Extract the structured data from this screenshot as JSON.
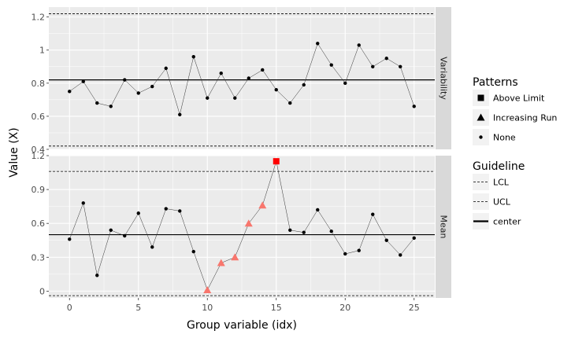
{
  "chart_data": {
    "type": "line",
    "xlabel": "Group variable (idx)",
    "ylabel": "Value (X)",
    "x_ticks": [
      0,
      5,
      10,
      15,
      20,
      25
    ],
    "xlim": [
      -1.5,
      26.5
    ],
    "grid": true,
    "legend_position": "right",
    "facets": [
      {
        "name": "Variability",
        "ylim": [
          0.4,
          1.26
        ],
        "y_ticks": [
          0.4,
          0.6,
          0.8,
          1.0,
          1.2
        ],
        "y_tick_labels": [
          "0.4",
          "0.6",
          "0.8",
          "1",
          "1.2"
        ],
        "center": 0.82,
        "lcl": 0.42,
        "ucl": 1.22,
        "x": [
          0,
          1,
          2,
          3,
          4,
          5,
          6,
          7,
          8,
          9,
          10,
          11,
          12,
          13,
          14,
          15,
          16,
          17,
          18,
          19,
          20,
          21,
          22,
          23,
          24,
          25
        ],
        "values": [
          0.75,
          0.81,
          0.68,
          0.66,
          0.82,
          0.74,
          0.78,
          0.89,
          0.61,
          0.96,
          0.71,
          0.86,
          0.71,
          0.83,
          0.88,
          0.76,
          0.68,
          0.79,
          1.04,
          0.91,
          0.8,
          1.03,
          0.9,
          0.95,
          0.9,
          0.66
        ],
        "patterns": [
          "None",
          "None",
          "None",
          "None",
          "None",
          "None",
          "None",
          "None",
          "None",
          "None",
          "None",
          "None",
          "None",
          "None",
          "None",
          "None",
          "None",
          "None",
          "None",
          "None",
          "None",
          "None",
          "None",
          "None",
          "None",
          "None"
        ]
      },
      {
        "name": "Mean",
        "ylim": [
          -0.06,
          1.2
        ],
        "y_ticks": [
          0,
          0.3,
          0.6,
          0.9,
          1.2
        ],
        "y_tick_labels": [
          "0",
          "0.3",
          "0.6",
          "0.9",
          "1.2"
        ],
        "center": 0.5,
        "lcl": -0.04,
        "ucl": 1.06,
        "x": [
          0,
          1,
          2,
          3,
          4,
          5,
          6,
          7,
          8,
          9,
          10,
          11,
          12,
          13,
          14,
          15,
          16,
          17,
          18,
          19,
          20,
          21,
          22,
          23,
          24,
          25
        ],
        "values": [
          0.46,
          0.78,
          0.14,
          0.54,
          0.49,
          0.69,
          0.39,
          0.73,
          0.71,
          0.35,
          0.01,
          0.25,
          0.3,
          0.6,
          0.76,
          1.15,
          0.54,
          0.52,
          0.72,
          0.53,
          0.33,
          0.36,
          0.68,
          0.45,
          0.32,
          0.47
        ],
        "patterns": [
          "None",
          "None",
          "None",
          "None",
          "None",
          "None",
          "None",
          "None",
          "None",
          "None",
          "Increasing Run",
          "Increasing Run",
          "Increasing Run",
          "Increasing Run",
          "Increasing Run",
          "Above Limit",
          "None",
          "None",
          "None",
          "None",
          "None",
          "None",
          "None",
          "None",
          "None",
          "None"
        ]
      }
    ],
    "legends": {
      "patterns": {
        "title": "Patterns",
        "items": [
          {
            "label": "Above Limit",
            "shape": "square"
          },
          {
            "label": "Increasing Run",
            "shape": "triangle"
          },
          {
            "label": "None",
            "shape": "dot"
          }
        ]
      },
      "guideline": {
        "title": "Guideline",
        "items": [
          {
            "label": "LCL",
            "style": "dashed"
          },
          {
            "label": "UCL",
            "style": "dashed"
          },
          {
            "label": "center",
            "style": "solid"
          }
        ]
      }
    },
    "colors": {
      "panel_bg": "#ebebeb",
      "grid": "#ffffff",
      "strip_bg": "#d9d9d9",
      "increasing_run": "#f8766d",
      "above_limit": "#ff0000",
      "none": "#000000"
    }
  }
}
